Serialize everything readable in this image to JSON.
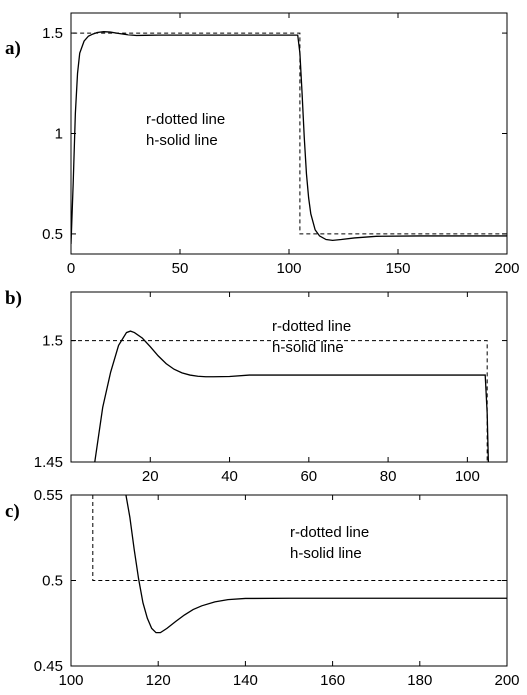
{
  "chart_data": [
    {
      "type": "line",
      "panel_label": "a)",
      "xlim": [
        0,
        200
      ],
      "ylim": [
        0.4,
        1.6
      ],
      "xticks": [
        0,
        50,
        100,
        150,
        200
      ],
      "yticks": [
        0.5,
        1,
        1.5
      ],
      "xtick_labels": [
        "0",
        "50",
        "100",
        "150",
        "200"
      ],
      "ytick_labels": [
        "0.5",
        "1",
        "1.5"
      ],
      "annotation": [
        "r-dotted line",
        "h-solid line"
      ],
      "grid": false,
      "series": [
        {
          "name": "r",
          "style": "dashed",
          "x": [
            0,
            0,
            105,
            105,
            200
          ],
          "y": [
            0.5,
            1.5,
            1.5,
            0.5,
            0.5
          ]
        },
        {
          "name": "h",
          "style": "solid",
          "x": [
            0,
            1,
            2,
            3,
            4,
            6,
            8,
            10,
            12,
            15,
            18,
            22,
            26,
            30,
            34,
            40,
            60,
            80,
            104,
            105,
            106,
            107,
            108,
            109,
            110,
            112,
            114,
            117,
            120,
            124,
            130,
            140,
            160,
            180,
            200
          ],
          "y": [
            0.45,
            0.75,
            1.1,
            1.3,
            1.4,
            1.46,
            1.485,
            1.495,
            1.503,
            1.507,
            1.505,
            1.498,
            1.492,
            1.488,
            1.489,
            1.49,
            1.49,
            1.49,
            1.49,
            1.4,
            1.2,
            0.98,
            0.8,
            0.68,
            0.6,
            0.52,
            0.49,
            0.472,
            0.468,
            0.472,
            0.48,
            0.488,
            0.49,
            0.49,
            0.49
          ]
        }
      ]
    },
    {
      "type": "line",
      "panel_label": "b)",
      "xlim": [
        0,
        110
      ],
      "ylim": [
        1.45,
        1.52
      ],
      "xticks": [
        20,
        40,
        60,
        80,
        100
      ],
      "yticks": [
        1.45,
        1.5
      ],
      "xtick_labels": [
        "20",
        "40",
        "60",
        "80",
        "100"
      ],
      "ytick_labels": [
        "1.45",
        "1.5"
      ],
      "annotation": [
        "r-dotted line",
        "h-solid line"
      ],
      "grid": false,
      "series": [
        {
          "name": "r",
          "style": "dashed",
          "x": [
            0,
            105,
            105
          ],
          "y": [
            1.5,
            1.5,
            1.45
          ]
        },
        {
          "name": "h",
          "style": "solid",
          "x": [
            6,
            8,
            10,
            12,
            14,
            15,
            16,
            18,
            20,
            22,
            24,
            26,
            28,
            30,
            32,
            34,
            36,
            40,
            45,
            60,
            80,
            100,
            104.5,
            105,
            105.3
          ],
          "y": [
            1.45,
            1.4725,
            1.487,
            1.498,
            1.5033,
            1.5039,
            1.5033,
            1.501,
            1.4975,
            1.4937,
            1.4905,
            1.4882,
            1.4867,
            1.4858,
            1.4853,
            1.4851,
            1.4851,
            1.4852,
            1.4858,
            1.4858,
            1.4858,
            1.4858,
            1.4858,
            1.47,
            1.45
          ]
        }
      ]
    },
    {
      "type": "line",
      "panel_label": "c)",
      "xlim": [
        100,
        200
      ],
      "ylim": [
        0.45,
        0.55
      ],
      "xticks": [
        100,
        120,
        140,
        160,
        180,
        200
      ],
      "yticks": [
        0.45,
        0.5,
        0.55
      ],
      "xtick_labels": [
        "100",
        "120",
        "140",
        "160",
        "180",
        "200"
      ],
      "ytick_labels": [
        "0.45",
        "0.5",
        "0.55"
      ],
      "annotation": [
        "r-dotted line",
        "h-solid line"
      ],
      "grid": false,
      "series": [
        {
          "name": "r",
          "style": "dashed",
          "x": [
            105,
            105,
            200
          ],
          "y": [
            0.55,
            0.5,
            0.5
          ]
        },
        {
          "name": "h",
          "style": "solid",
          "x": [
            112.6,
            113.5,
            114.5,
            115.5,
            116.5,
            117.5,
            118.5,
            119.5,
            120.5,
            122,
            124,
            126,
            128,
            130,
            133,
            136,
            140,
            150,
            160,
            180,
            200
          ],
          "y": [
            0.55,
            0.537,
            0.518,
            0.501,
            0.487,
            0.478,
            0.472,
            0.4695,
            0.4695,
            0.472,
            0.476,
            0.4798,
            0.483,
            0.4852,
            0.4875,
            0.4888,
            0.4895,
            0.4896,
            0.4896,
            0.4896,
            0.4896
          ]
        }
      ]
    }
  ]
}
